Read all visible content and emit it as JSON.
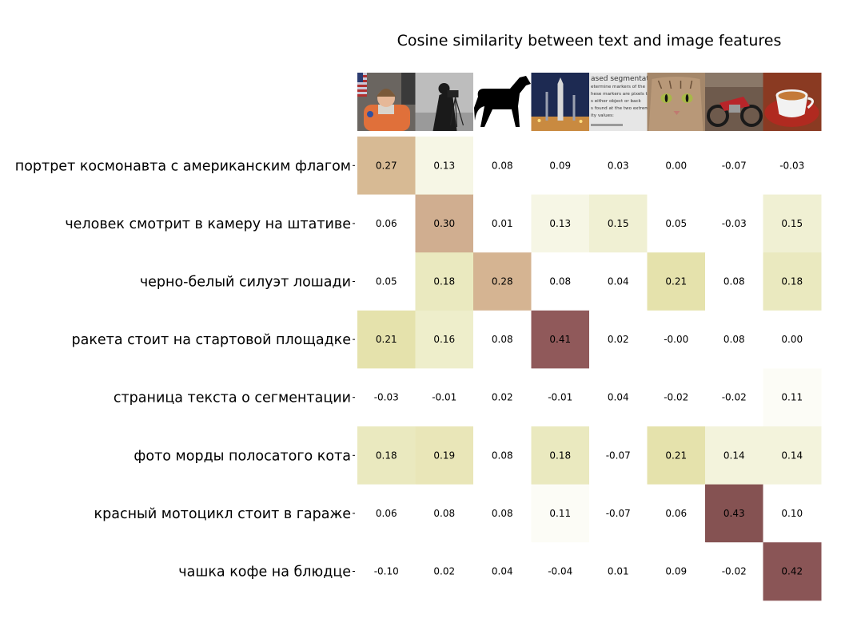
{
  "chart_data": {
    "type": "heatmap",
    "title": "Cosine similarity between text and image features",
    "rows": [
      "портрет космонавта с американским флагом",
      "человек смотрит в камеру на штативе",
      "черно-белый силуэт лошади",
      "ракета стоит на стартовой площадке",
      "страница текста о сегментации",
      "фото морды полосатого кота",
      "красный мотоцикл стоит в гараже",
      "чашка кофе на блюдце"
    ],
    "columns": [
      "astronaut",
      "camera",
      "horse",
      "rocket",
      "page",
      "chelsea",
      "motorcycle",
      "coffee"
    ],
    "column_images": [
      "astronaut-photo",
      "cameraman-photo",
      "horse-silhouette",
      "rocket-photo",
      "text-page-photo",
      "cat-photo",
      "motorcycle-photo",
      "coffee-cup-photo"
    ],
    "values": [
      [
        0.27,
        0.13,
        0.08,
        0.09,
        0.03,
        0.0,
        -0.07,
        -0.03
      ],
      [
        0.06,
        0.3,
        0.01,
        0.13,
        0.15,
        0.05,
        -0.03,
        0.15
      ],
      [
        0.05,
        0.18,
        0.28,
        0.08,
        0.04,
        0.21,
        0.08,
        0.18
      ],
      [
        0.21,
        0.16,
        0.08,
        0.41,
        0.02,
        -0.0,
        0.08,
        0.0
      ],
      [
        -0.03,
        -0.01,
        0.02,
        -0.01,
        0.04,
        -0.02,
        -0.02,
        0.11
      ],
      [
        0.18,
        0.19,
        0.08,
        0.18,
        -0.07,
        0.21,
        0.14,
        0.14
      ],
      [
        0.06,
        0.08,
        0.08,
        0.11,
        -0.07,
        0.06,
        0.43,
        0.1
      ],
      [
        -0.1,
        0.02,
        0.04,
        -0.04,
        0.01,
        0.09,
        -0.02,
        0.42
      ]
    ],
    "value_labels": [
      [
        "0.27",
        "0.13",
        "0.08",
        "0.09",
        "0.03",
        "0.00",
        "-0.07",
        "-0.03"
      ],
      [
        "0.06",
        "0.30",
        "0.01",
        "0.13",
        "0.15",
        "0.05",
        "-0.03",
        "0.15"
      ],
      [
        "0.05",
        "0.18",
        "0.28",
        "0.08",
        "0.04",
        "0.21",
        "0.08",
        "0.18"
      ],
      [
        "0.21",
        "0.16",
        "0.08",
        "0.41",
        "0.02",
        "-0.00",
        "0.08",
        "0.00"
      ],
      [
        "-0.03",
        "-0.01",
        "0.02",
        "-0.01",
        "0.04",
        "-0.02",
        "-0.02",
        "0.11"
      ],
      [
        "0.18",
        "0.19",
        "0.08",
        "0.18",
        "-0.07",
        "0.21",
        "0.14",
        "0.14"
      ],
      [
        "0.06",
        "0.08",
        "0.08",
        "0.11",
        "-0.07",
        "0.06",
        "0.43",
        "0.10"
      ],
      [
        "-0.10",
        "0.02",
        "0.04",
        "-0.04",
        "0.01",
        "0.09",
        "-0.02",
        "0.42"
      ]
    ],
    "vmin": 0.1,
    "vmax": 0.45,
    "colormap": [
      "#ffffff",
      "#eeeecc",
      "#e4e0a8",
      "#d6b692",
      "#c9a48e",
      "#9a6062",
      "#7a4a4a"
    ],
    "colorbar": false,
    "grid": false,
    "image_text": {
      "page_lines": [
        "ased segmentatio",
        "etermine markers of the",
        "hese markers are pixels th",
        "s either object or back",
        "s found at the two extrem",
        "ity values:"
      ]
    }
  }
}
